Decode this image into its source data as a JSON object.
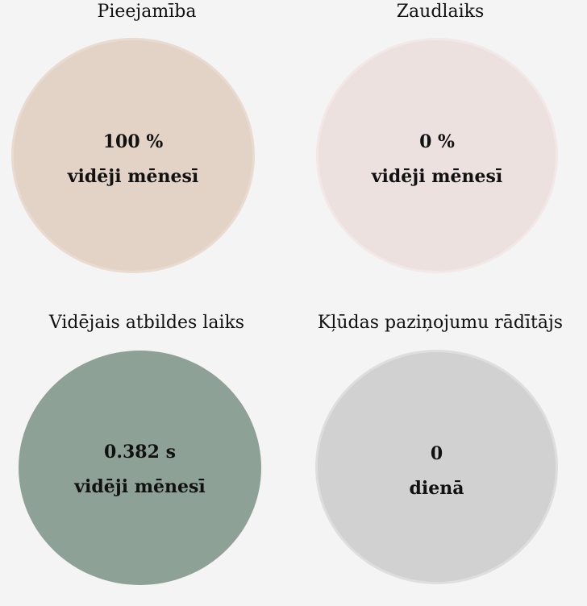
{
  "metrics": [
    {
      "title": "Pieejamība",
      "value": "100 %",
      "period": "vidēji mēnesī",
      "fill_color": "#e3d3c6",
      "border_color": "#e9dbd0"
    },
    {
      "title": "Zaudlaiks",
      "value": "0 %",
      "period": "vidēji mēnesī",
      "fill_color": "#ede1e0",
      "border_color": "#f1e8e7"
    },
    {
      "title": "Vidējais atbildes laiks",
      "value": "0.382 s",
      "period": "vidēji mēnesī",
      "fill_color": "#8da196",
      "border_color": "#8da196"
    },
    {
      "title": "Kļūdas paziņojumu rādītājs",
      "value": "0",
      "period": "dienā",
      "fill_color": "#d1d1d1",
      "border_color": "#dedede"
    }
  ]
}
